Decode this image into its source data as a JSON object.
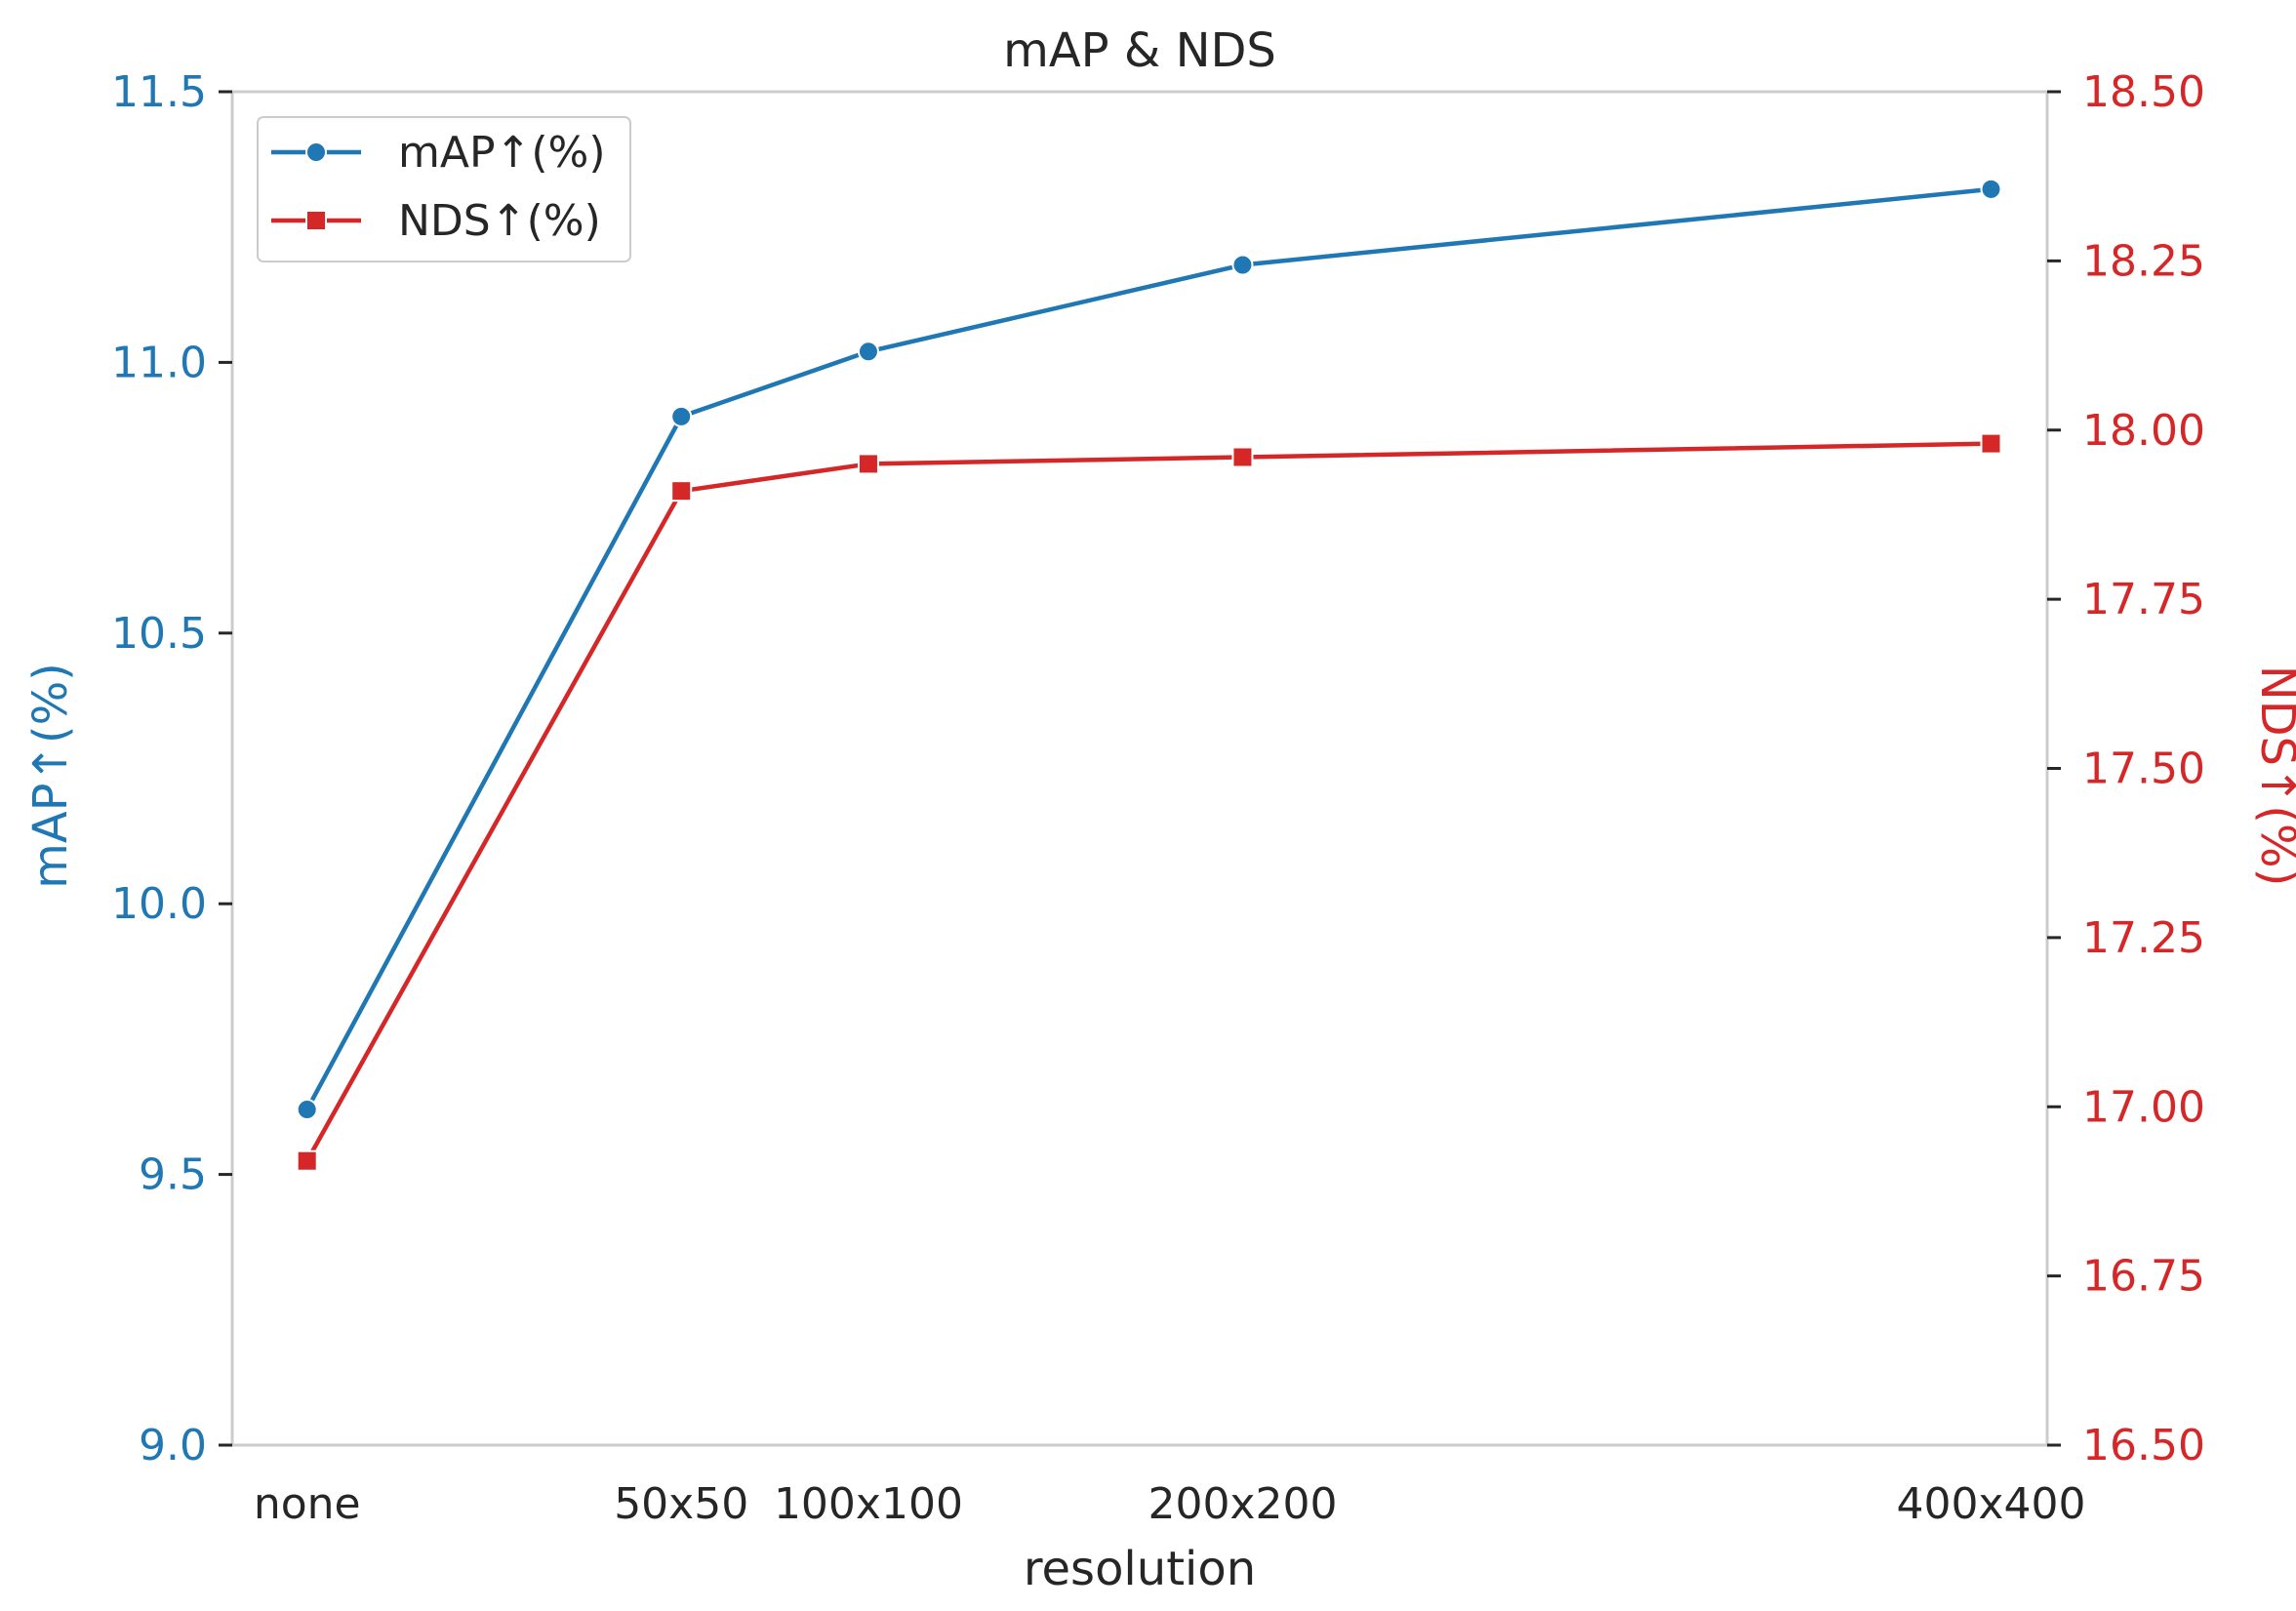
{
  "chart_data": {
    "type": "line",
    "title": "mAP & NDS",
    "xlabel": "resolution",
    "categories": [
      "none",
      "50x50",
      "100x100",
      "200x200",
      "400x400"
    ],
    "x_positions": [
      0,
      1,
      1.5,
      2.5,
      4.5
    ],
    "xlim": [
      -0.2,
      4.65
    ],
    "y_left": {
      "label": "mAP↑(%)",
      "ylim": [
        9.0,
        11.5
      ],
      "ticks": [
        "9.0",
        "9.5",
        "10.0",
        "10.5",
        "11.0",
        "11.5"
      ],
      "color": "#1f77b4"
    },
    "y_right": {
      "label": "NDS↑(%)",
      "ylim": [
        16.5,
        18.5
      ],
      "ticks": [
        "16.50",
        "16.75",
        "17.00",
        "17.25",
        "17.50",
        "17.75",
        "18.00",
        "18.25",
        "18.50"
      ],
      "color": "#d62728"
    },
    "series": [
      {
        "name": "mAP↑(%)",
        "axis": "left",
        "color": "#1f77b4",
        "marker": "circle",
        "values": [
          9.62,
          10.9,
          11.02,
          11.18,
          11.32
        ]
      },
      {
        "name": "NDS↑(%)",
        "axis": "right",
        "color": "#d62728",
        "marker": "square",
        "values": [
          16.92,
          17.91,
          17.95,
          17.96,
          17.98
        ]
      }
    ],
    "legend": "top-left",
    "grid": false
  }
}
